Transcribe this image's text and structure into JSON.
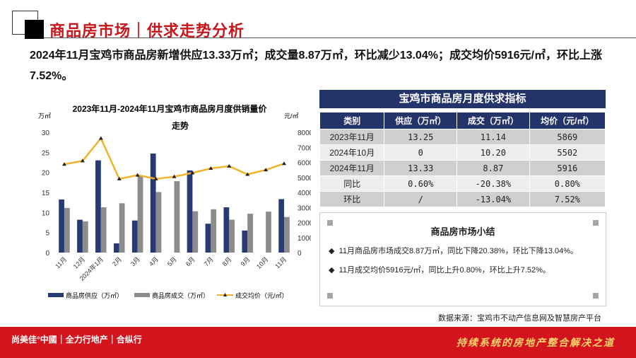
{
  "header": {
    "title": "商品房市场｜供求走势分析"
  },
  "lead": "2024年11月宝鸡市商品房新增供应13.33万㎡；成交量8.87万㎡，环比减少13.04%；成交均价5916元/㎡，环比上涨7.52%。",
  "chart_data": {
    "type": "bar+line",
    "title_line1": "2023年11月-2024年11月宝鸡市商品房月度供销量价",
    "title_line2": "走势",
    "ylabel_left": "万㎡",
    "ylabel_right": "元/㎡",
    "ylim_left": [
      0,
      30
    ],
    "ylim_right": [
      0,
      8000
    ],
    "yticks_left": [
      "0",
      "5",
      "10",
      "15",
      "20",
      "25",
      "30"
    ],
    "yticks_right": [
      "0",
      "1000",
      "2000",
      "3000",
      "4000",
      "5000",
      "6000",
      "7000",
      "8000"
    ],
    "categories": [
      "11月",
      "12月",
      "2024年1月",
      "2月",
      "3月",
      "4月",
      "5月",
      "6月",
      "7月",
      "8月",
      "9月",
      "10月",
      "11月"
    ],
    "series": [
      {
        "name": "商品房供应（万㎡）",
        "type": "bar",
        "color": "#283a73",
        "values": [
          13.25,
          8.2,
          23.0,
          2.3,
          8.0,
          24.7,
          0,
          20.5,
          7.2,
          11.3,
          5.5,
          0,
          13.33
        ]
      },
      {
        "name": "商品房成交（万㎡）",
        "type": "bar",
        "color": "#8c8c8c",
        "values": [
          11.14,
          7.8,
          11.3,
          12.3,
          19.3,
          15.1,
          17.8,
          10.3,
          10.8,
          8.2,
          9.7,
          10.2,
          8.87
        ]
      },
      {
        "name": "成交均价（元/㎡）",
        "type": "line",
        "axis": "right",
        "color": "#f0b429",
        "values": [
          5869,
          6100,
          7600,
          4900,
          5150,
          4900,
          5050,
          5300,
          5600,
          5750,
          5200,
          5502,
          5916
        ]
      }
    ],
    "legend_position": "bottom"
  },
  "table": {
    "title": "宝鸡市商品房月度供求指标",
    "headers": [
      "类别",
      "供应（万㎡）",
      "成交（万㎡）",
      "均价（元/㎡）"
    ],
    "rows": [
      [
        "2023年11月",
        "13.25",
        "11.14",
        "5869"
      ],
      [
        "2024年10月",
        "0",
        "10.20",
        "5502"
      ],
      [
        "2024年11月",
        "13.33",
        "8.87",
        "5916"
      ],
      [
        "同比",
        "0.60%",
        "-20.38%",
        "0.80%"
      ],
      [
        "环比",
        "/",
        "-13.04%",
        "7.52%"
      ]
    ]
  },
  "summary": {
    "title": "商品房市场小结",
    "bullets": [
      "11月商品房市场成交8.87万㎡，同比下降20.38%，环比下降13.04%。",
      "11月成交均价5916元/㎡，同比上升0.80%，环比上升7.52%。"
    ]
  },
  "source": "数据来源：宝鸡市不动产信息网及智慧房产平台",
  "footer": {
    "logo": "尚美佳°中國｜全力行地产｜合纵行",
    "slogan": "持续系统的房地产整合解决之道"
  }
}
